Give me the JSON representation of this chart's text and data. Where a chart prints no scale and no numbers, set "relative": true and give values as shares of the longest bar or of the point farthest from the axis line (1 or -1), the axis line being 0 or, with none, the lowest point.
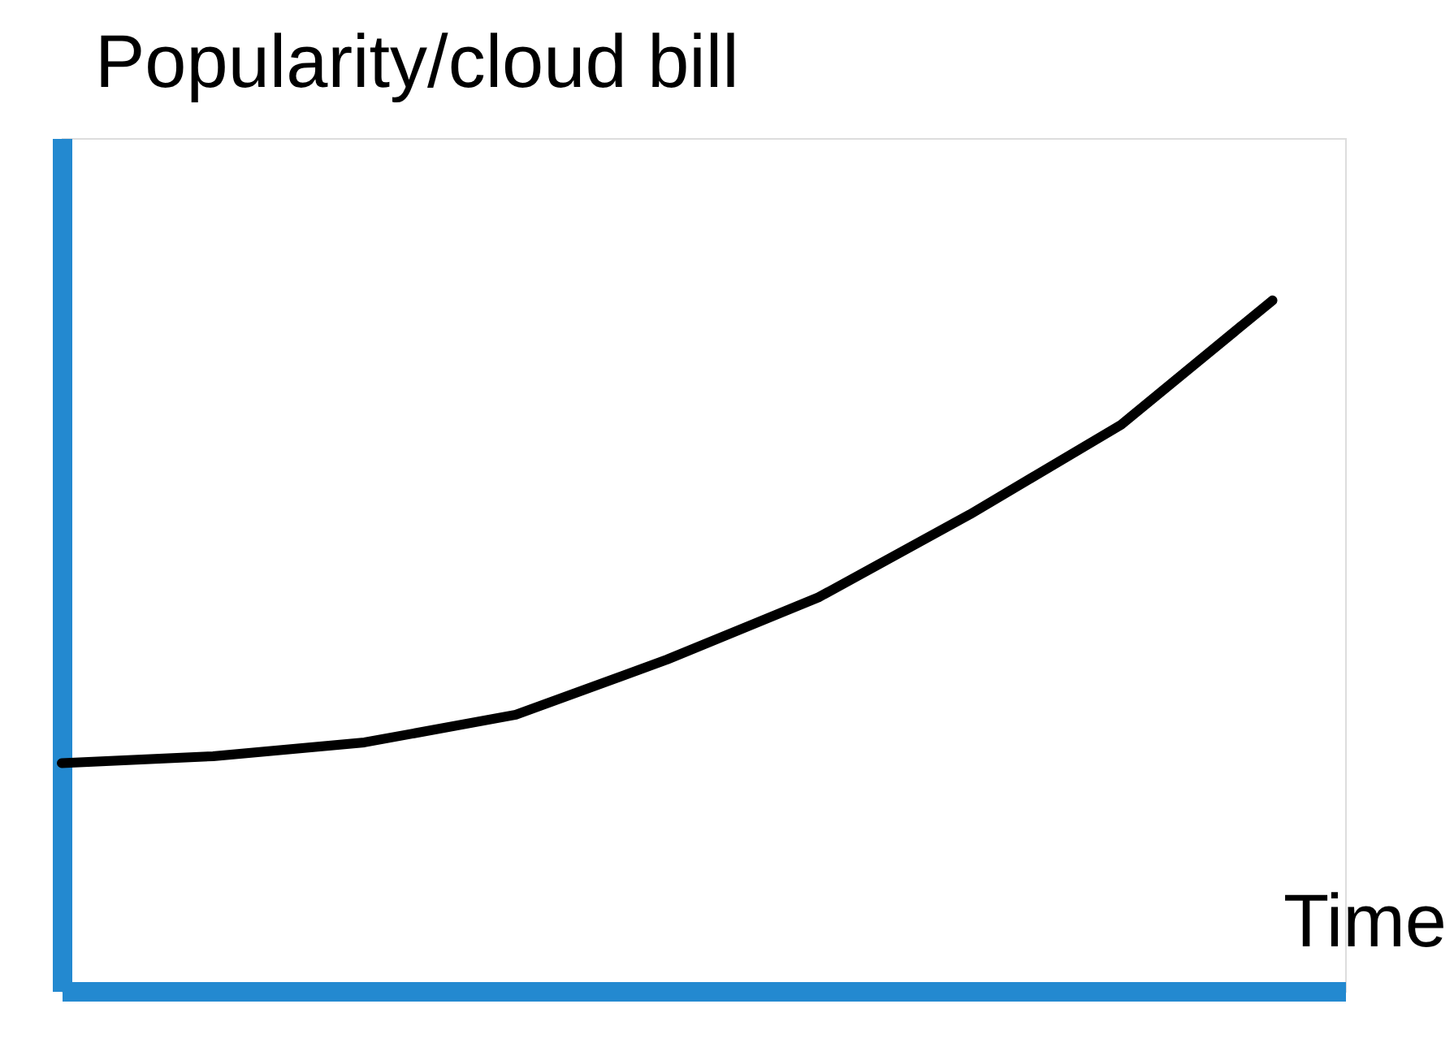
{
  "chart_data": {
    "type": "line",
    "relative": true,
    "xlabel": "Time",
    "ylabel": "Popularity/cloud bill",
    "categories": [
      null,
      null,
      null,
      null,
      null,
      null,
      null,
      null,
      null
    ],
    "series": [
      {
        "color": "#000000",
        "values": [
          0.33,
          0.34,
          0.36,
          0.4,
          0.48,
          0.57,
          0.69,
          0.82,
          1.0
        ]
      }
    ],
    "tick_labels": false,
    "grid": false,
    "marker": "none",
    "line_style": "solid"
  }
}
